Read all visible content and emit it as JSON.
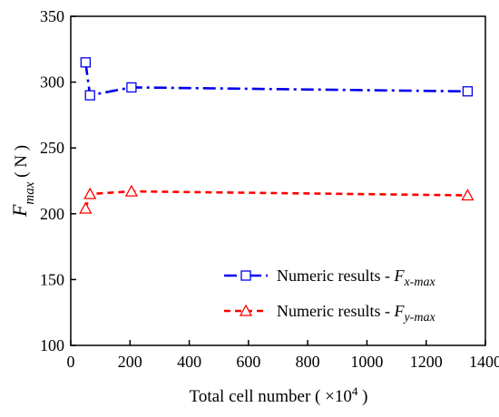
{
  "chart_data": {
    "type": "line",
    "xlabel": {
      "prefix": "Total cell number ( ×10",
      "exp": "4",
      "suffix": " )"
    },
    "ylabel": {
      "main": "F",
      "sub": "max",
      "unit": " ( N )"
    },
    "xlim": [
      0,
      1400
    ],
    "ylim": [
      100,
      350
    ],
    "xticks": [
      0,
      200,
      400,
      600,
      800,
      1000,
      1200,
      1400
    ],
    "yticks": [
      100,
      150,
      200,
      250,
      300,
      350
    ],
    "grid": false,
    "legend_position": "bottom-right",
    "series": [
      {
        "legend_prefix": "Numeric results - ",
        "legend_italic": "F",
        "legend_sub": "x-max",
        "color": "#0000ee",
        "marker": "square",
        "line_style": "dash-dot",
        "x": [
          50,
          65,
          205,
          1340
        ],
        "y": [
          315,
          290,
          296,
          293
        ]
      },
      {
        "legend_prefix": "Numeric results - ",
        "legend_italic": "F",
        "legend_sub": "y-max",
        "color": "#ff0000",
        "marker": "triangle",
        "line_style": "dashed",
        "x": [
          50,
          65,
          205,
          1340
        ],
        "y": [
          204,
          215,
          217,
          214
        ]
      }
    ]
  }
}
